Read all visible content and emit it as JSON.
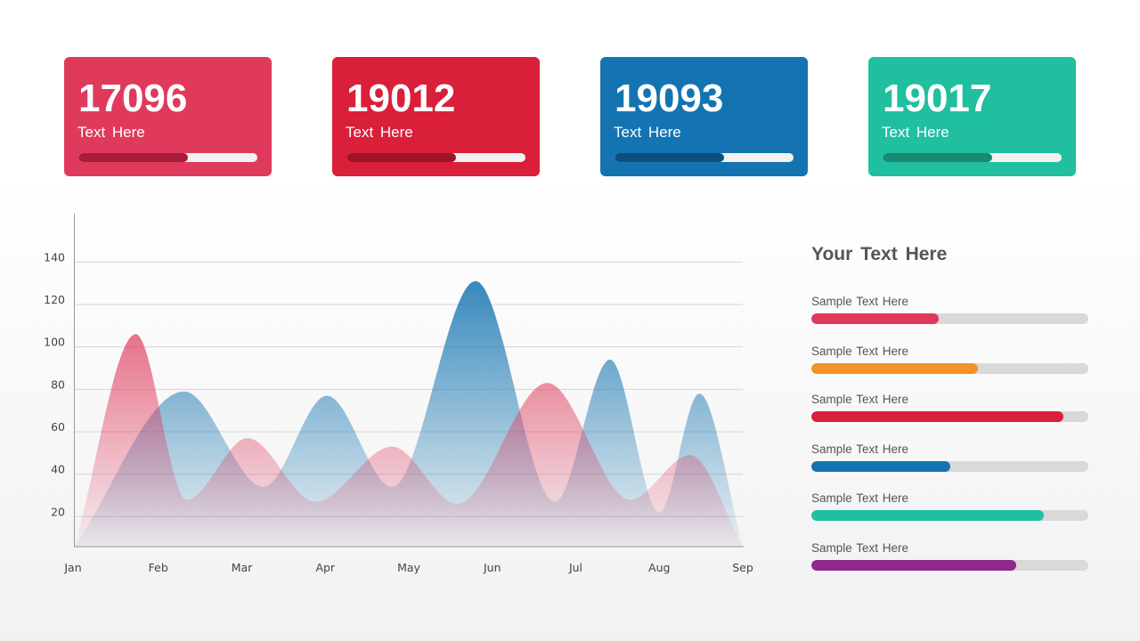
{
  "cards": [
    {
      "value": "17096",
      "label": "Text Here",
      "progress": 0.61,
      "color": "#df3a5c",
      "fill_color": "#a81c3a"
    },
    {
      "value": "19012",
      "label": "Text Here",
      "progress": 0.61,
      "color": "#da1f3a",
      "fill_color": "#9e1428"
    },
    {
      "value": "19093",
      "label": "Text Here",
      "progress": 0.61,
      "color": "#1474b2",
      "fill_color": "#0d4e7a"
    },
    {
      "value": "19017",
      "label": "Text Here",
      "progress": 0.61,
      "color": "#1fbfa0",
      "fill_color": "#168a73"
    }
  ],
  "side": {
    "title": "Your Text Here",
    "items": [
      {
        "label": "Sample Text Here",
        "progress": 0.46,
        "color": "#df3a5c"
      },
      {
        "label": "Sample Text Here",
        "progress": 0.6,
        "color": "#f29229"
      },
      {
        "label": "Sample Text Here",
        "progress": 0.91,
        "color": "#da1f3a"
      },
      {
        "label": "Sample Text Here",
        "progress": 0.5,
        "color": "#1474b2"
      },
      {
        "label": "Sample Text Here",
        "progress": 0.84,
        "color": "#1fbfa0"
      },
      {
        "label": "Sample Text Here",
        "progress": 0.74,
        "color": "#8e2a8b"
      }
    ]
  },
  "chart_data": {
    "type": "area",
    "categories": [
      "Jan",
      "Feb",
      "Mar",
      "Apr",
      "May",
      "Jun",
      "Jul",
      "Aug",
      "Sep"
    ],
    "yticks": [
      20,
      40,
      60,
      80,
      100,
      120,
      140
    ],
    "ylim": [
      6,
      155
    ],
    "grid": true,
    "series": [
      {
        "color": "#1474b2",
        "points": [
          [
            0,
            6
          ],
          [
            1.31,
            79
          ],
          [
            2.26,
            34
          ],
          [
            3.02,
            77
          ],
          [
            3.8,
            34
          ],
          [
            4.8,
            131
          ],
          [
            5.75,
            27
          ],
          [
            6.41,
            94
          ],
          [
            7.0,
            22
          ],
          [
            7.48,
            78
          ],
          [
            8,
            6
          ]
        ]
      },
      {
        "color": "#df3a5c",
        "points": [
          [
            0,
            6
          ],
          [
            0.73,
            106
          ],
          [
            1.34,
            28
          ],
          [
            2.07,
            57
          ],
          [
            2.88,
            27
          ],
          [
            3.8,
            53
          ],
          [
            4.58,
            26
          ],
          [
            5.66,
            83
          ],
          [
            6.65,
            28
          ],
          [
            7.37,
            49
          ],
          [
            8,
            6
          ]
        ]
      }
    ]
  }
}
